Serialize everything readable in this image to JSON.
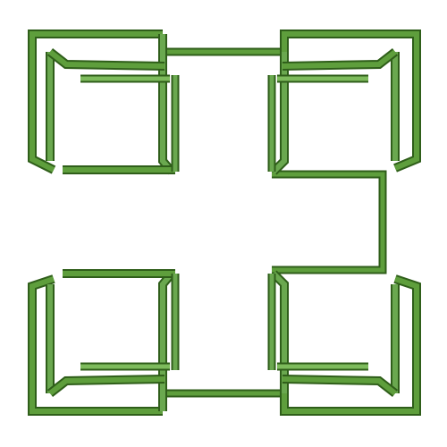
{
  "figure": {
    "subject": "hilbert-curve-tube-render",
    "colors": {
      "tube_light": "#6aa84f",
      "tube_mid": "#4a8a2c",
      "tube_dark": "#2f5e1a",
      "background": "#ffffff"
    }
  }
}
